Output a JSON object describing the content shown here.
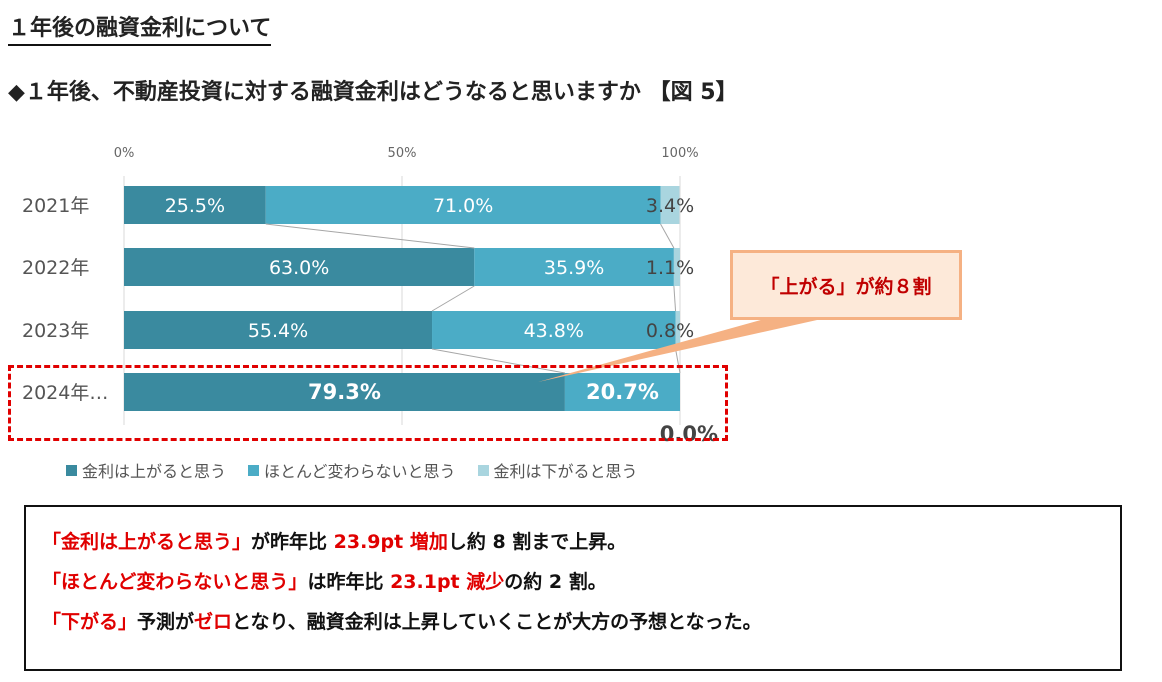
{
  "heading": "１年後の融資金利について",
  "question": "◆１年後、不動産投資に対する融資金利はどうなると思いますか 【図 5】",
  "colors": {
    "up": "#3a8a9f",
    "same": "#4bacc6",
    "down": "#a9d5df",
    "accent": "#e00000"
  },
  "chart_data": {
    "type": "bar",
    "orientation": "horizontal",
    "stacked": "100%",
    "categories": [
      "2021年",
      "2022年",
      "2023年",
      "2024年…"
    ],
    "series": [
      {
        "name": "金利は上がると思う",
        "values": [
          25.5,
          63.0,
          55.4,
          79.3
        ]
      },
      {
        "name": "ほとんど変わらないと思う",
        "values": [
          71.0,
          35.9,
          43.8,
          20.7
        ]
      },
      {
        "name": "金利は下がると思う",
        "values": [
          3.4,
          1.1,
          0.8,
          0.0
        ]
      }
    ],
    "labels": [
      [
        "25.5%",
        "71.0%",
        "3.4%"
      ],
      [
        "63.0%",
        "35.9%",
        "1.1%"
      ],
      [
        "55.4%",
        "43.8%",
        "0.8%"
      ],
      [
        "79.3%",
        "20.7%",
        "0.0%"
      ]
    ],
    "xticks": [
      "0%",
      "50%",
      "100%"
    ],
    "xlim": [
      0,
      100
    ],
    "grid": true,
    "legend": "bottom"
  },
  "callout": "「上がる」が約８割",
  "summary": [
    [
      {
        "t": "「金利は上がると思う」",
        "red": true
      },
      {
        "t": "が昨年比 ",
        "red": false
      },
      {
        "t": "23.9pt 増加",
        "red": true
      },
      {
        "t": "し約 8 割まで上昇。",
        "red": false
      }
    ],
    [
      {
        "t": "「ほとんど変わらないと思う」",
        "red": true
      },
      {
        "t": "は昨年比 ",
        "red": false
      },
      {
        "t": "23.1pt 減少",
        "red": true
      },
      {
        "t": "の約 2 割。",
        "red": false
      }
    ],
    [
      {
        "t": "「下がる」",
        "red": true
      },
      {
        "t": "予測が",
        "red": false
      },
      {
        "t": "ゼロ",
        "red": true
      },
      {
        "t": "となり、融資金利は上昇していくことが大方の予想となった。",
        "red": false
      }
    ]
  ]
}
